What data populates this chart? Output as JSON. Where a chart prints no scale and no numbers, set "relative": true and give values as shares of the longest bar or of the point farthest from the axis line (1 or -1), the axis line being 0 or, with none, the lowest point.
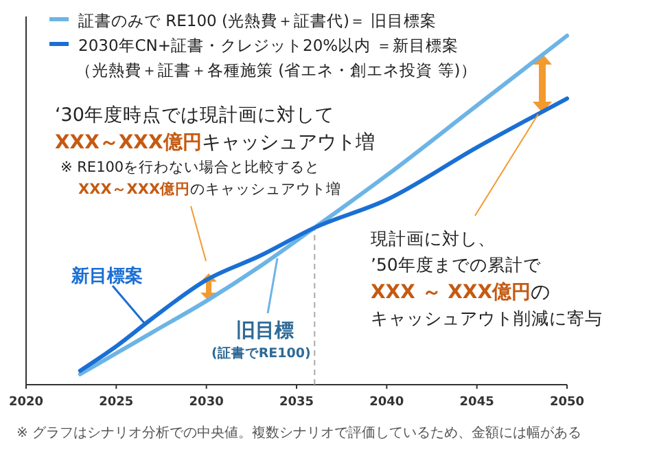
{
  "chart_data": {
    "type": "line",
    "relative": true,
    "x": [
      2023,
      2025,
      2027,
      2030,
      2033,
      2036,
      2040,
      2045,
      2050
    ],
    "xlim": [
      2020,
      2050
    ],
    "xticks": [
      2020,
      2025,
      2030,
      2035,
      2040,
      2045,
      2050
    ],
    "tick_labels": "x",
    "grid": false,
    "legend": "top left",
    "marker": "none",
    "line_style": "solid",
    "series": [
      {
        "name": "証書のみで RE100 (光熱費＋証書代)＝ 旧目標案",
        "color": "#6cb4e6",
        "values": [
          0.03,
          0.09,
          0.15,
          0.24,
          0.34,
          0.45,
          0.6,
          0.8,
          1
        ]
      },
      {
        "name": "2030年CN+証書・クレジット20%以内 ＝新目標案",
        "color": "#1a6fd4",
        "values": [
          0.04,
          0.11,
          0.19,
          0.3,
          0.37,
          0.45,
          0.53,
          0.68,
          0.82
        ]
      }
    ],
    "ref_lines": [
      {
        "axis": "x",
        "value": 2036,
        "color": "#aaaaaa",
        "line_style": "dashed"
      }
    ],
    "annotations": [
      "‘30年度時点では現計画に対して",
      "XXX～XXX億円",
      "キャッシュアウト増",
      "※ RE100を行わない場合と比較すると",
      "XXX～XXX億円",
      "のキャッシュアウト増",
      "現計画に対し、",
      "’50年度までの累計で",
      "XXX ～ XXX億円",
      "の",
      "キャッシュアウト削減に寄与",
      "新目標案",
      "旧目標",
      "(証書でRE100)",
      "※ グラフはシナリオ分析での中央値。複数シナリオで評価しているため、金額には幅がある",
      "（光熱費＋証書＋各種施策 (省エネ・創エネ投資 等)）"
    ]
  }
}
